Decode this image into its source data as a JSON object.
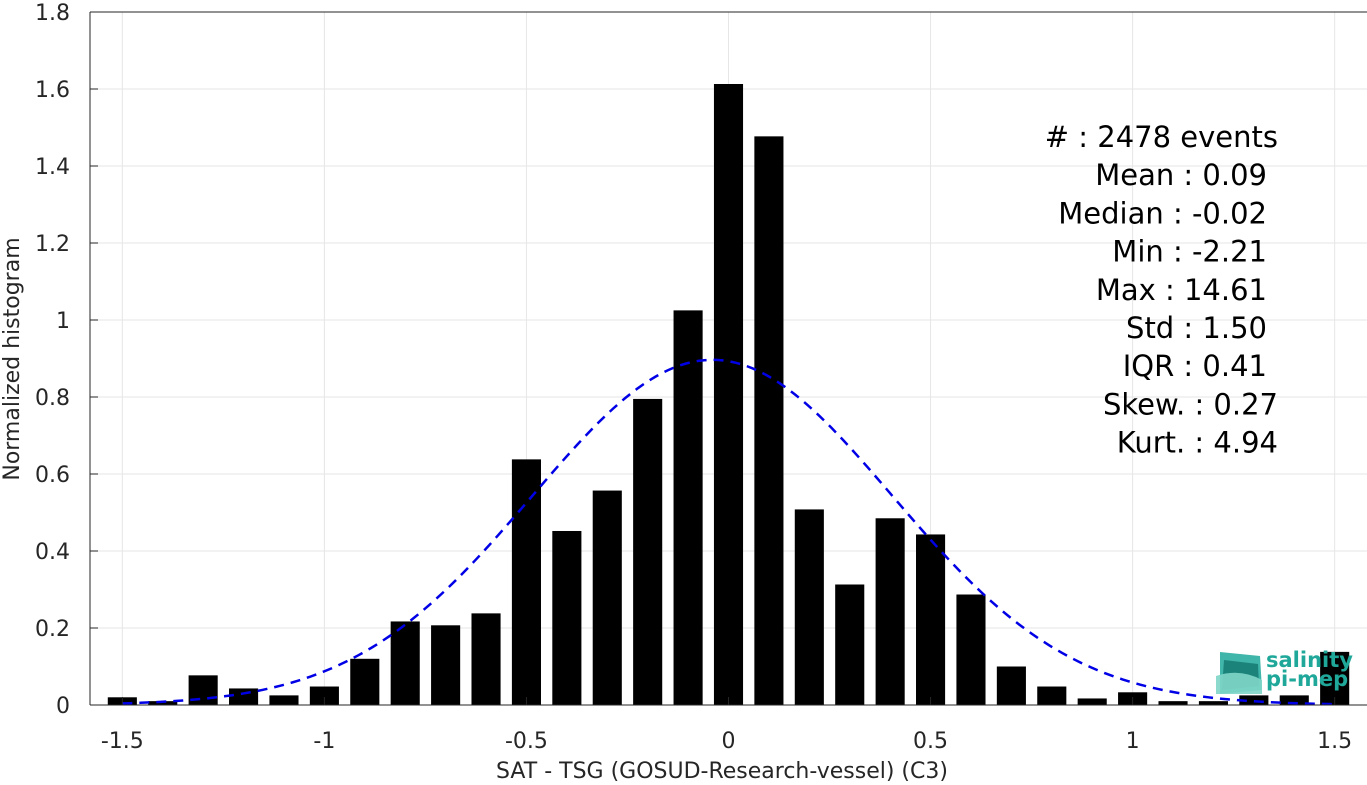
{
  "chart_data": {
    "type": "bar",
    "xlabel": "SAT - TSG (GOSUD-Research-vessel) (C3)",
    "ylabel": "Normalized histogram",
    "xlim": [
      -1.58,
      1.58
    ],
    "ylim": [
      0,
      1.8
    ],
    "xticks": [
      -1.5,
      -1,
      -0.5,
      0,
      0.5,
      1,
      1.5
    ],
    "xtick_labels": [
      "-1.5",
      "-1",
      "-0.5",
      "0",
      "0.5",
      "1",
      "1.5"
    ],
    "yticks": [
      0,
      0.2,
      0.4,
      0.6,
      0.8,
      1,
      1.2,
      1.4,
      1.6,
      1.8
    ],
    "ytick_labels": [
      "0",
      "0.2",
      "0.4",
      "0.6",
      "0.8",
      "1",
      "1.2",
      "1.4",
      "1.6",
      "1.8"
    ],
    "grid": true,
    "bar_color": "#000000",
    "bin_centers": [
      -1.5,
      -1.4,
      -1.3,
      -1.2,
      -1.1,
      -1.0,
      -0.9,
      -0.8,
      -0.7,
      -0.6,
      -0.5,
      -0.4,
      -0.3,
      -0.2,
      -0.1,
      0.0,
      0.1,
      0.2,
      0.3,
      0.4,
      0.5,
      0.6,
      0.7,
      0.8,
      0.9,
      1.0,
      1.1,
      1.2,
      1.3,
      1.4,
      1.5
    ],
    "values": [
      0.02,
      0.01,
      0.077,
      0.043,
      0.025,
      0.048,
      0.12,
      0.217,
      0.207,
      0.238,
      0.638,
      0.452,
      0.557,
      0.795,
      1.025,
      1.613,
      1.477,
      0.508,
      0.313,
      0.485,
      0.443,
      0.287,
      0.1,
      0.048,
      0.017,
      0.033,
      0.01,
      0.01,
      0.025,
      0.025,
      0.138
    ],
    "fit_curve": {
      "type": "normal",
      "mean": -0.04,
      "std": 0.445,
      "color": "#0000e6",
      "style": "dashed",
      "x_range": [
        -1.5,
        1.5
      ]
    },
    "stats": [
      "#  : 2478 events",
      "Mean : 0.09",
      "Median : -0.02",
      "Min : -2.21",
      "Max : 14.61",
      "Std : 1.50",
      "IQR : 0.41",
      "Skew. : 0.27",
      "Kurt. : 4.94"
    ]
  },
  "logo": {
    "line1": "salinity",
    "line2": "pi-mep",
    "colors": [
      "#1fa89a",
      "#0d6e66",
      "#7fd6c8"
    ]
  }
}
